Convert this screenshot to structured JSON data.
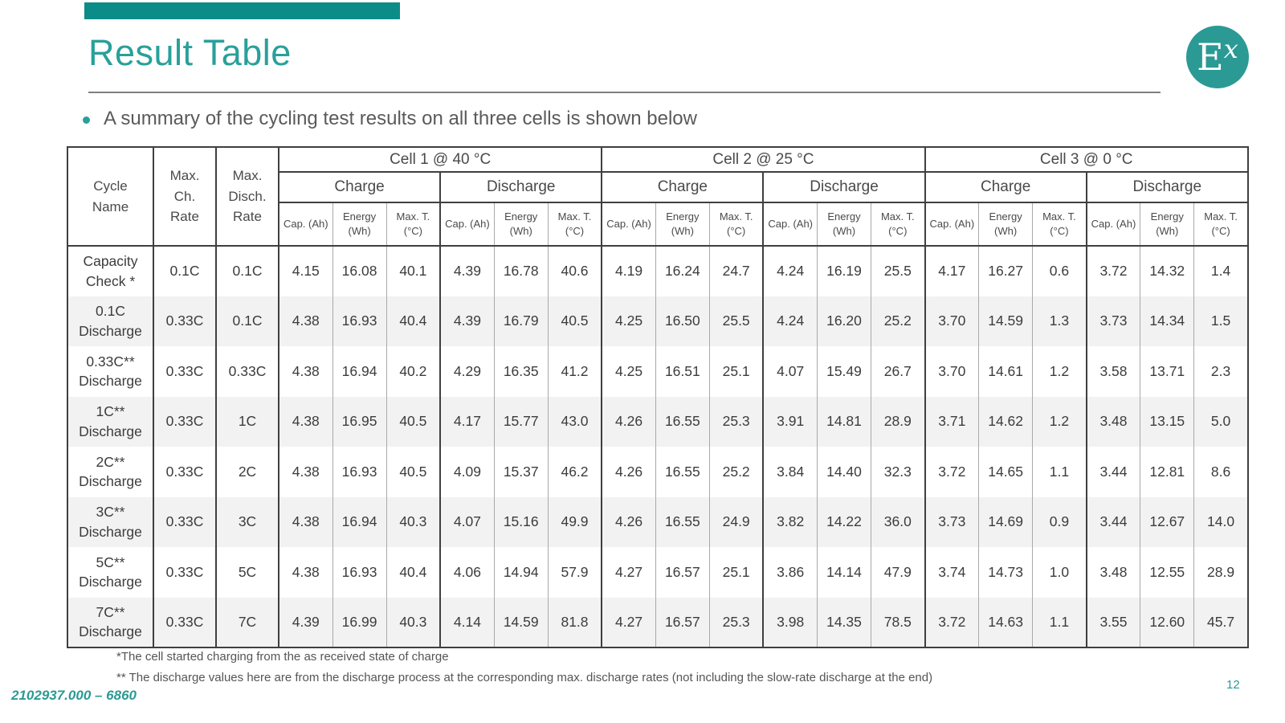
{
  "slide": {
    "title": "Result Table",
    "bullet_text": "A summary of the cycling test results on all three cells is shown below",
    "logo_e": "E",
    "logo_x": "x",
    "footnote_1": "*The cell started charging from the as received state of charge",
    "footnote_2": "** The discharge values here are from the discharge process at the corresponding max. discharge rates (not including the slow-rate discharge at the end)",
    "footer_id": "2102937.000 – 6860",
    "page_number": "12"
  },
  "colors": {
    "accent_teal_bar": "#0c8c89",
    "accent_teal_text": "#2aa09a",
    "body_text_gray": "#5a5a5a",
    "table_border_dark": "#3f3f3f",
    "table_border_light": "#a9a9a9",
    "row_stripe": "#f2f2f2"
  },
  "table": {
    "corner_headers": [
      "Cycle Name",
      "Max. Ch. Rate",
      "Max. Disch. Rate"
    ],
    "cell_groups": [
      "Cell 1 @ 40 °C",
      "Cell 2 @ 25 °C",
      "Cell 3 @ 0 °C"
    ],
    "subgroups": [
      "Charge",
      "Discharge"
    ],
    "metrics": [
      "Cap. (Ah)",
      "Energy (Wh)",
      "Max. T. (°C)"
    ],
    "rows": [
      {
        "name": "Capacity Check *",
        "max_ch": "0.1C",
        "max_disch": "0.1C",
        "values": [
          "4.15",
          "16.08",
          "40.1",
          "4.39",
          "16.78",
          "40.6",
          "4.19",
          "16.24",
          "24.7",
          "4.24",
          "16.19",
          "25.5",
          "4.17",
          "16.27",
          "0.6",
          "3.72",
          "14.32",
          "1.4"
        ]
      },
      {
        "name": "0.1C Discharge",
        "max_ch": "0.33C",
        "max_disch": "0.1C",
        "values": [
          "4.38",
          "16.93",
          "40.4",
          "4.39",
          "16.79",
          "40.5",
          "4.25",
          "16.50",
          "25.5",
          "4.24",
          "16.20",
          "25.2",
          "3.70",
          "14.59",
          "1.3",
          "3.73",
          "14.34",
          "1.5"
        ]
      },
      {
        "name": "0.33C** Discharge",
        "max_ch": "0.33C",
        "max_disch": "0.33C",
        "values": [
          "4.38",
          "16.94",
          "40.2",
          "4.29",
          "16.35",
          "41.2",
          "4.25",
          "16.51",
          "25.1",
          "4.07",
          "15.49",
          "26.7",
          "3.70",
          "14.61",
          "1.2",
          "3.58",
          "13.71",
          "2.3"
        ]
      },
      {
        "name": "1C** Discharge",
        "max_ch": "0.33C",
        "max_disch": "1C",
        "values": [
          "4.38",
          "16.95",
          "40.5",
          "4.17",
          "15.77",
          "43.0",
          "4.26",
          "16.55",
          "25.3",
          "3.91",
          "14.81",
          "28.9",
          "3.71",
          "14.62",
          "1.2",
          "3.48",
          "13.15",
          "5.0"
        ]
      },
      {
        "name": "2C** Discharge",
        "max_ch": "0.33C",
        "max_disch": "2C",
        "values": [
          "4.38",
          "16.93",
          "40.5",
          "4.09",
          "15.37",
          "46.2",
          "4.26",
          "16.55",
          "25.2",
          "3.84",
          "14.40",
          "32.3",
          "3.72",
          "14.65",
          "1.1",
          "3.44",
          "12.81",
          "8.6"
        ]
      },
      {
        "name": "3C** Discharge",
        "max_ch": "0.33C",
        "max_disch": "3C",
        "values": [
          "4.38",
          "16.94",
          "40.3",
          "4.07",
          "15.16",
          "49.9",
          "4.26",
          "16.55",
          "24.9",
          "3.82",
          "14.22",
          "36.0",
          "3.73",
          "14.69",
          "0.9",
          "3.44",
          "12.67",
          "14.0"
        ]
      },
      {
        "name": "5C** Discharge",
        "max_ch": "0.33C",
        "max_disch": "5C",
        "values": [
          "4.38",
          "16.93",
          "40.4",
          "4.06",
          "14.94",
          "57.9",
          "4.27",
          "16.57",
          "25.1",
          "3.86",
          "14.14",
          "47.9",
          "3.74",
          "14.73",
          "1.0",
          "3.48",
          "12.55",
          "28.9"
        ]
      },
      {
        "name": "7C** Discharge",
        "max_ch": "0.33C",
        "max_disch": "7C",
        "values": [
          "4.39",
          "16.99",
          "40.3",
          "4.14",
          "14.59",
          "81.8",
          "4.27",
          "16.57",
          "25.3",
          "3.98",
          "14.35",
          "78.5",
          "3.72",
          "14.63",
          "1.1",
          "3.55",
          "12.60",
          "45.7"
        ]
      }
    ]
  }
}
